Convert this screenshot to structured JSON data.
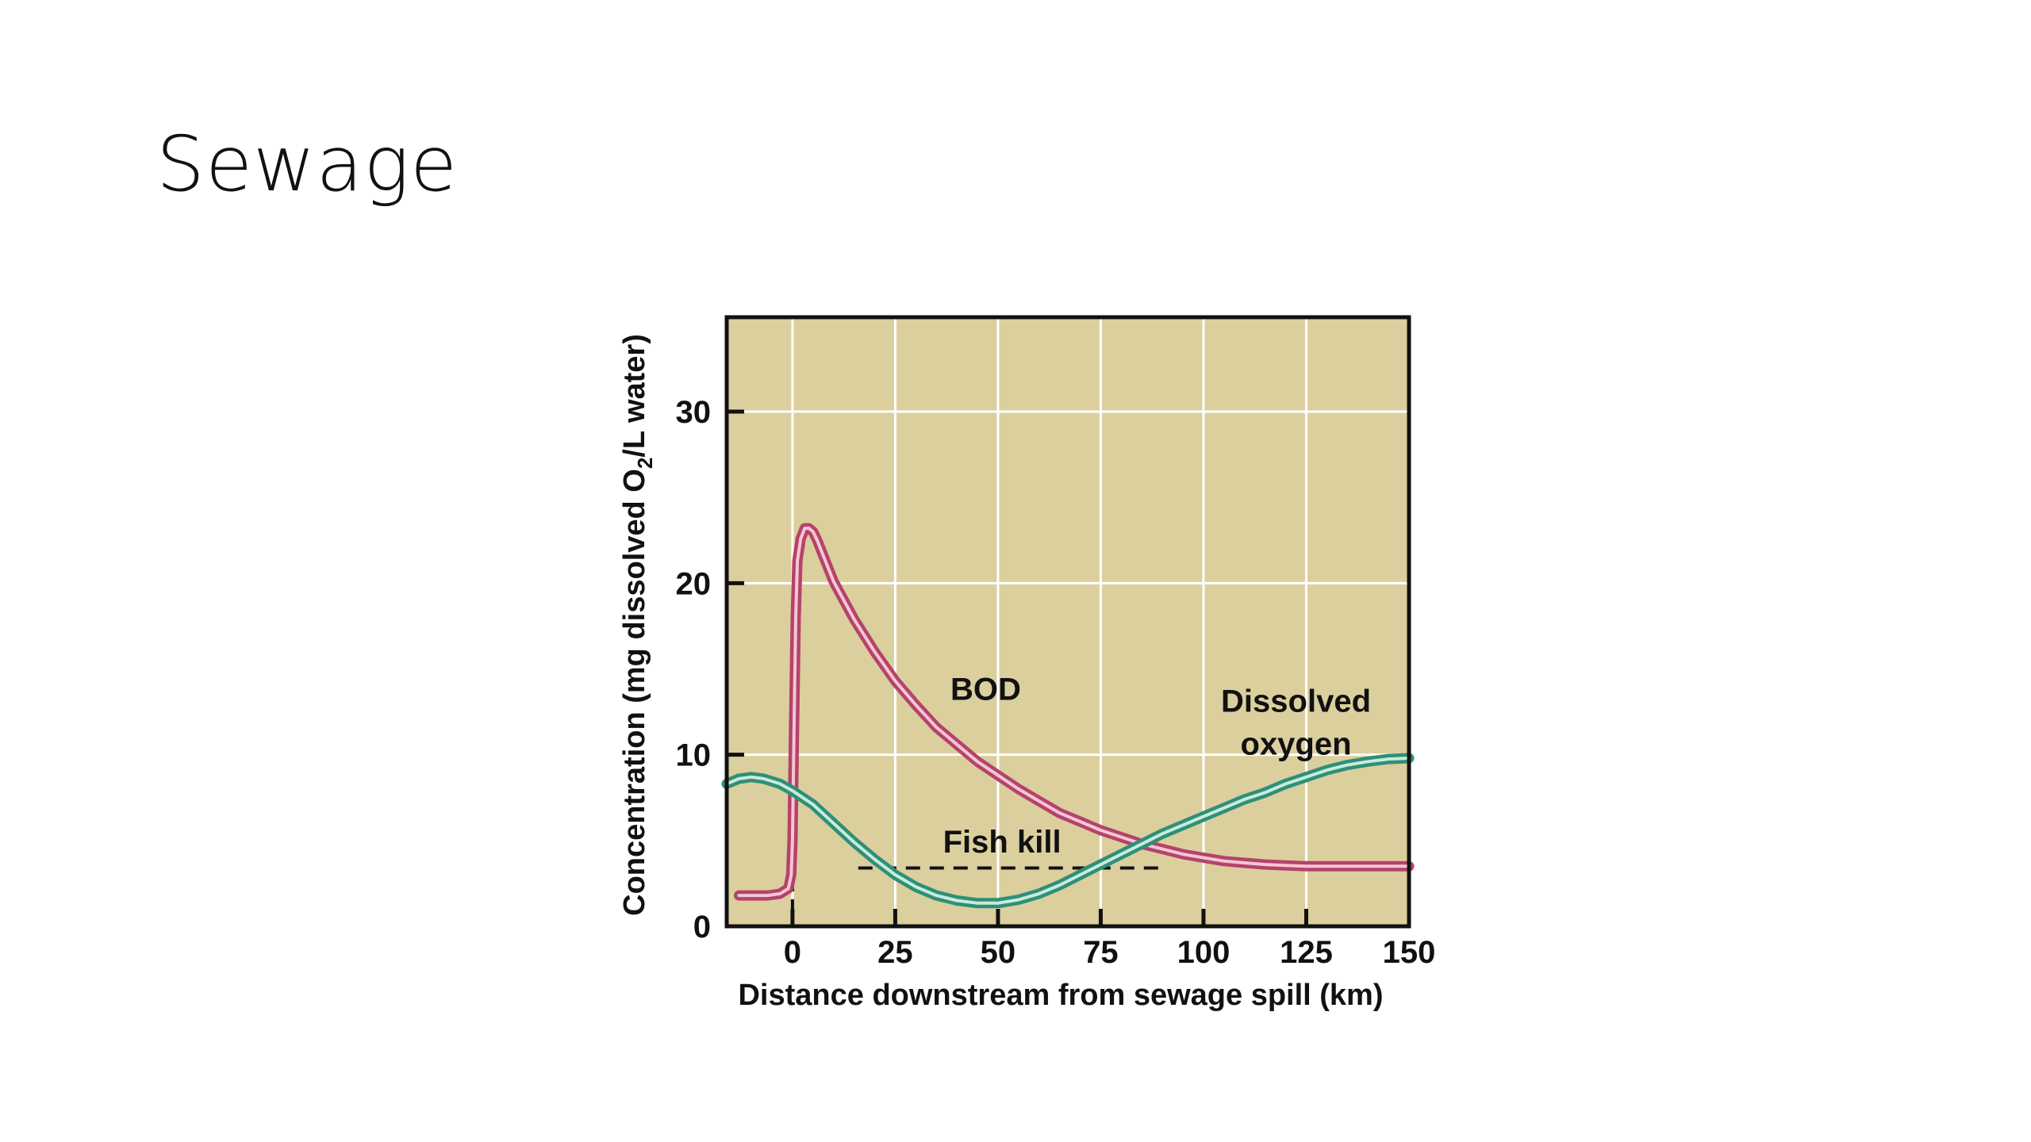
{
  "slide": {
    "title": "Sewage"
  },
  "chart_data": {
    "type": "line",
    "xlabel": "Distance downstream from sewage spill (km)",
    "ylabel_parts": [
      "Concentration (mg dissolved O",
      "2",
      "/L water)"
    ],
    "xlim": [
      -16,
      150
    ],
    "ylim": [
      0,
      35.5
    ],
    "x_ticks": [
      0,
      25,
      50,
      75,
      100,
      125,
      150
    ],
    "y_ticks": [
      0,
      10,
      20,
      30
    ],
    "x_tick_labels": [
      "0",
      "25",
      "50",
      "75",
      "100",
      "125",
      "150"
    ],
    "y_tick_labels": [
      "0",
      "10",
      "20",
      "30"
    ],
    "grid": true,
    "plot_background": "#dccf9e",
    "grid_color": "#ffffff",
    "series": [
      {
        "name": "BOD",
        "label_lines": [
          "BOD"
        ],
        "label_at": [
          47,
          13.2
        ],
        "color": "#b5436b",
        "inner_color": "#f4c6d3",
        "points": [
          [
            -13,
            1.8
          ],
          [
            -6,
            1.8
          ],
          [
            -3,
            1.9
          ],
          [
            -1,
            2.2
          ],
          [
            -0.3,
            3.0
          ],
          [
            0,
            5
          ],
          [
            0.4,
            12
          ],
          [
            0.8,
            18
          ],
          [
            1.2,
            21.3
          ],
          [
            2,
            22.6
          ],
          [
            3,
            23.2
          ],
          [
            4,
            23.2
          ],
          [
            5,
            23.0
          ],
          [
            6,
            22.5
          ],
          [
            8,
            21.3
          ],
          [
            10,
            20.1
          ],
          [
            15,
            17.9
          ],
          [
            20,
            16.0
          ],
          [
            25,
            14.3
          ],
          [
            30,
            12.9
          ],
          [
            35,
            11.6
          ],
          [
            40,
            10.6
          ],
          [
            45,
            9.6
          ],
          [
            50,
            8.8
          ],
          [
            55,
            8.0
          ],
          [
            60,
            7.3
          ],
          [
            65,
            6.6
          ],
          [
            70,
            6.1
          ],
          [
            75,
            5.6
          ],
          [
            80,
            5.2
          ],
          [
            85,
            4.8
          ],
          [
            90,
            4.5
          ],
          [
            95,
            4.2
          ],
          [
            100,
            4.0
          ],
          [
            105,
            3.8
          ],
          [
            110,
            3.7
          ],
          [
            115,
            3.6
          ],
          [
            120,
            3.55
          ],
          [
            125,
            3.5
          ],
          [
            130,
            3.5
          ],
          [
            140,
            3.5
          ],
          [
            150,
            3.5
          ]
        ]
      },
      {
        "name": "Dissolved oxygen",
        "label_lines": [
          "Dissolved",
          "oxygen"
        ],
        "label_at": [
          122.5,
          12.5
        ],
        "color": "#2f8f79",
        "inner_color": "#c8ecd9",
        "points": [
          [
            -16,
            8.3
          ],
          [
            -13,
            8.6
          ],
          [
            -10,
            8.7
          ],
          [
            -7,
            8.6
          ],
          [
            -3,
            8.3
          ],
          [
            0,
            7.9
          ],
          [
            5,
            7.1
          ],
          [
            10,
            6.0
          ],
          [
            15,
            4.9
          ],
          [
            20,
            3.9
          ],
          [
            25,
            3.0
          ],
          [
            30,
            2.3
          ],
          [
            35,
            1.8
          ],
          [
            40,
            1.5
          ],
          [
            45,
            1.35
          ],
          [
            50,
            1.35
          ],
          [
            55,
            1.55
          ],
          [
            60,
            1.9
          ],
          [
            65,
            2.4
          ],
          [
            70,
            3.0
          ],
          [
            75,
            3.6
          ],
          [
            80,
            4.2
          ],
          [
            85,
            4.8
          ],
          [
            90,
            5.4
          ],
          [
            95,
            5.9
          ],
          [
            100,
            6.4
          ],
          [
            105,
            6.9
          ],
          [
            110,
            7.4
          ],
          [
            115,
            7.8
          ],
          [
            120,
            8.3
          ],
          [
            125,
            8.7
          ],
          [
            130,
            9.1
          ],
          [
            135,
            9.4
          ],
          [
            140,
            9.6
          ],
          [
            145,
            9.75
          ],
          [
            150,
            9.8
          ]
        ]
      }
    ],
    "annotations": [
      {
        "text": "Fish kill",
        "at": [
          51,
          4.3
        ],
        "line_from": [
          16,
          3.4
        ],
        "line_to": [
          89,
          3.4
        ]
      }
    ],
    "marker_line": {
      "x": 0,
      "y_from": 0,
      "y_to": 2.5
    }
  }
}
